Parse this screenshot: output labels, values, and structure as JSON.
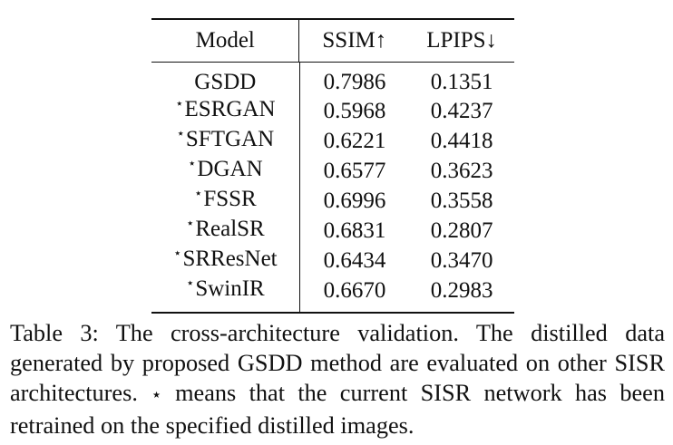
{
  "table": {
    "headers": {
      "model": "Model",
      "ssim": "SSIM↑",
      "lpips": "LPIPS↓"
    },
    "rows": [
      {
        "star": "",
        "model": "GSDD",
        "ssim": "0.7986",
        "lpips": "0.1351"
      },
      {
        "star": "⋆",
        "model": "ESRGAN",
        "ssim": "0.5968",
        "lpips": "0.4237"
      },
      {
        "star": "⋆",
        "model": "SFTGAN",
        "ssim": "0.6221",
        "lpips": "0.4418"
      },
      {
        "star": "⋆",
        "model": "DGAN",
        "ssim": "0.6577",
        "lpips": "0.3623"
      },
      {
        "star": "⋆",
        "model": "FSSR",
        "ssim": "0.6996",
        "lpips": "0.3558"
      },
      {
        "star": "⋆",
        "model": "RealSR",
        "ssim": "0.6831",
        "lpips": "0.2807"
      },
      {
        "star": "⋆",
        "model": "SRResNet",
        "ssim": "0.6434",
        "lpips": "0.3470"
      },
      {
        "star": "⋆",
        "model": "SwinIR",
        "ssim": "0.6670",
        "lpips": "0.2983"
      }
    ]
  },
  "caption": {
    "part1": "Table 3: The cross-architecture validation. The distilled data generated by proposed GSDD method are evaluated on other SISR architectures. ",
    "star": "⋆",
    "part2": " means that the current SISR network has been retrained on the specified distilled images."
  }
}
